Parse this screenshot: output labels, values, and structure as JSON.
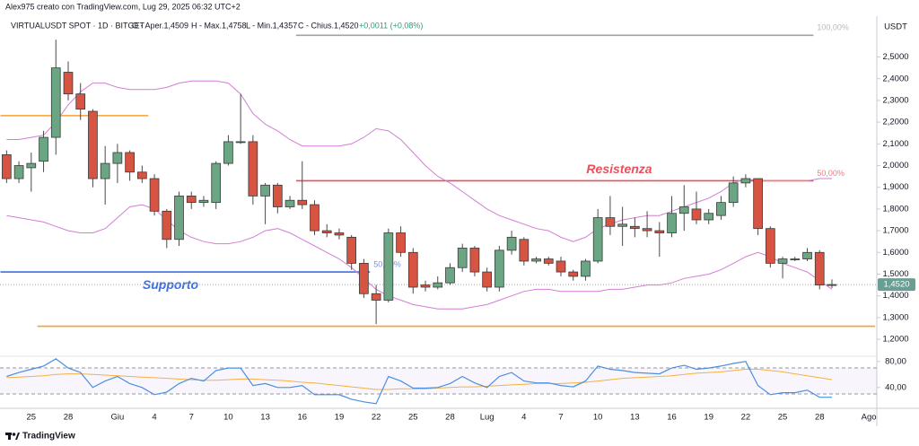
{
  "chart_data": {
    "type": "candlestick",
    "caption": "Alex975 creato con TradingView.com, Lug 29, 2025 06:32 UTC+2",
    "symbol": "VIRTUALUSDT SPOT · 1D · BITGET",
    "ohlc_legend": [
      "O - Aper.1,4509",
      "H - Max.1,4758",
      "L - Min.1,4357",
      "C - Chius.1,4520"
    ],
    "change": "+0,0011 (+0,08%)",
    "unit": "USDT",
    "brand": "TradingView",
    "categories": [
      null,
      null,
      "25",
      null,
      null,
      "28",
      null,
      null,
      null,
      "Giu",
      null,
      null,
      "4",
      null,
      null,
      "7",
      null,
      null,
      "10",
      null,
      null,
      "13",
      null,
      null,
      "16",
      null,
      null,
      "19",
      null,
      null,
      "22",
      null,
      null,
      "25",
      null,
      null,
      "28",
      null,
      null,
      "Lug",
      null,
      null,
      "4",
      null,
      null,
      "7",
      null,
      null,
      "10",
      null,
      null,
      "13",
      null,
      null,
      "16",
      null,
      null,
      "19",
      null,
      null,
      "22",
      null,
      null,
      "25",
      null,
      null,
      "28",
      null,
      null,
      null,
      "Ago"
    ],
    "ohlc": {
      "open": [
        2.05,
        1.94,
        1.99,
        2.02,
        2.13,
        2.43,
        2.33,
        2.25,
        1.94,
        2.01,
        2.06,
        1.97,
        1.94,
        1.79,
        1.66,
        1.86,
        1.83,
        1.83,
        2.01,
        2.11,
        2.11,
        1.86,
        1.91,
        1.81,
        1.84,
        1.82,
        1.7,
        1.69,
        1.67,
        1.55,
        1.41,
        1.38,
        1.69,
        1.6,
        1.45,
        1.44,
        1.46,
        1.53,
        1.62,
        1.51,
        1.44,
        1.61,
        1.66,
        1.56,
        1.57,
        1.56,
        1.51,
        1.49,
        1.56,
        1.76,
        1.72,
        1.72,
        1.71,
        1.7,
        1.69,
        1.78,
        1.8,
        1.75,
        1.77,
        1.83,
        1.92,
        1.94,
        1.71,
        1.55,
        1.57,
        1.57,
        1.6,
        1.4509,
        null,
        null,
        null
      ],
      "high": [
        2.07,
        2.02,
        2.06,
        2.16,
        2.58,
        2.48,
        2.38,
        2.26,
        2.09,
        2.1,
        2.07,
        2.0,
        1.96,
        1.8,
        1.88,
        1.88,
        1.86,
        2.02,
        2.14,
        2.33,
        2.14,
        1.92,
        1.92,
        1.86,
        2.02,
        1.84,
        1.73,
        1.71,
        1.68,
        1.57,
        1.45,
        1.71,
        1.72,
        1.62,
        1.47,
        1.49,
        1.55,
        1.64,
        1.63,
        1.53,
        1.63,
        1.7,
        1.67,
        1.58,
        1.58,
        1.58,
        1.52,
        1.57,
        1.8,
        1.86,
        1.81,
        1.76,
        1.79,
        1.74,
        1.86,
        1.91,
        1.88,
        1.8,
        1.86,
        1.95,
        1.96,
        1.94,
        1.72,
        1.58,
        1.58,
        1.62,
        1.61,
        1.4758,
        null,
        null,
        null
      ],
      "low": [
        1.92,
        1.92,
        1.88,
        1.97,
        2.05,
        2.3,
        2.21,
        1.9,
        1.82,
        1.92,
        1.93,
        1.92,
        1.77,
        1.62,
        1.63,
        1.8,
        1.81,
        1.8,
        2.0,
        2.1,
        1.82,
        1.73,
        1.78,
        1.8,
        1.8,
        1.68,
        1.67,
        1.66,
        1.52,
        1.39,
        1.27,
        1.37,
        1.58,
        1.41,
        1.42,
        1.43,
        1.45,
        1.51,
        1.49,
        1.42,
        1.42,
        1.59,
        1.54,
        1.55,
        1.54,
        1.49,
        1.47,
        1.47,
        1.55,
        1.68,
        1.63,
        1.67,
        1.67,
        1.58,
        1.67,
        1.7,
        1.73,
        1.73,
        1.75,
        1.81,
        1.9,
        1.68,
        1.53,
        1.48,
        1.56,
        1.56,
        1.43,
        1.4357,
        null,
        null,
        null
      ],
      "close": [
        1.94,
        2.0,
        2.01,
        2.13,
        2.45,
        2.33,
        2.26,
        1.94,
        2.01,
        2.06,
        1.97,
        1.94,
        1.79,
        1.66,
        1.86,
        1.83,
        1.84,
        2.01,
        2.11,
        2.11,
        1.86,
        1.91,
        1.81,
        1.84,
        1.82,
        1.7,
        1.69,
        1.68,
        1.55,
        1.41,
        1.38,
        1.69,
        1.6,
        1.44,
        1.44,
        1.46,
        1.53,
        1.62,
        1.51,
        1.44,
        1.61,
        1.67,
        1.56,
        1.57,
        1.55,
        1.51,
        1.49,
        1.56,
        1.76,
        1.72,
        1.73,
        1.71,
        1.7,
        1.69,
        1.78,
        1.81,
        1.75,
        1.78,
        1.83,
        1.92,
        1.94,
        1.71,
        1.55,
        1.57,
        1.57,
        1.6,
        1.45,
        1.452,
        null,
        null,
        null
      ]
    },
    "up_color": "#6ba583",
    "down_color": "#d75442",
    "bands": [
      {
        "color": "#d27fd2",
        "values": [
          2.12,
          2.12,
          2.13,
          2.14,
          2.2,
          2.28,
          2.34,
          2.38,
          2.38,
          2.36,
          2.35,
          2.35,
          2.35,
          2.36,
          2.38,
          2.39,
          2.39,
          2.39,
          2.38,
          2.33,
          2.24,
          2.19,
          2.16,
          2.12,
          2.09,
          2.09,
          2.09,
          2.09,
          2.1,
          2.13,
          2.17,
          2.16,
          2.12,
          2.06,
          2.0,
          1.95,
          1.92,
          1.88,
          1.84,
          1.8,
          1.77,
          1.75,
          1.73,
          1.71,
          1.7,
          1.67,
          1.65,
          1.67,
          1.71,
          1.73,
          1.75,
          1.76,
          1.77,
          1.77,
          1.79,
          1.81,
          1.83,
          1.85,
          1.88,
          1.92,
          1.94,
          1.93,
          1.93,
          1.93,
          1.93,
          1.93,
          1.94,
          1.94,
          null,
          null,
          null
        ]
      },
      {
        "color": "#d27fd2",
        "values": [
          1.77,
          1.76,
          1.75,
          1.74,
          1.72,
          1.7,
          1.69,
          1.69,
          1.71,
          1.76,
          1.81,
          1.82,
          1.8,
          1.75,
          1.7,
          1.67,
          1.65,
          1.64,
          1.64,
          1.65,
          1.67,
          1.7,
          1.71,
          1.69,
          1.66,
          1.63,
          1.6,
          1.57,
          1.53,
          1.48,
          1.43,
          1.4,
          1.38,
          1.36,
          1.35,
          1.34,
          1.34,
          1.34,
          1.35,
          1.36,
          1.38,
          1.4,
          1.42,
          1.43,
          1.43,
          1.42,
          1.42,
          1.42,
          1.42,
          1.43,
          1.43,
          1.44,
          1.45,
          1.45,
          1.46,
          1.48,
          1.49,
          1.5,
          1.52,
          1.55,
          1.58,
          1.6,
          1.58,
          1.55,
          1.53,
          1.51,
          1.47,
          1.43,
          null,
          null,
          null
        ]
      }
    ],
    "levels": [
      {
        "value": 2.23,
        "start": 0,
        "end": 11,
        "color": "#f5a033"
      },
      {
        "value": 1.51,
        "start": 0,
        "end": 29,
        "color": "#3d6fe0",
        "text": "Supporto",
        "label": "50,00%"
      },
      {
        "value": 1.26,
        "start": 3,
        "end": 70,
        "color": "#f5a033"
      },
      {
        "value": 1.93,
        "start": 24,
        "end": 65,
        "color": "#e8505b",
        "text": "Resistenza",
        "label": "50,00%"
      },
      {
        "value": 2.6,
        "start": 24,
        "end": 65,
        "color": "#9aa5a0",
        "label": "100,00%"
      }
    ],
    "last_price": {
      "value": 1.452,
      "label": "1,4520"
    },
    "ylim": [
      1.13,
      2.68
    ],
    "yticks": [
      {
        "value": 2.5,
        "label": "2,5000"
      },
      {
        "value": 2.4,
        "label": "2,4000"
      },
      {
        "value": 2.3,
        "label": "2,3000"
      },
      {
        "value": 2.2,
        "label": "2,2000"
      },
      {
        "value": 2.1,
        "label": "2,1000"
      },
      {
        "value": 2.0,
        "label": "2,0000"
      },
      {
        "value": 1.9,
        "label": "1,9000"
      },
      {
        "value": 1.8,
        "label": "1,8000"
      },
      {
        "value": 1.7,
        "label": "1,7000"
      },
      {
        "value": 1.6,
        "label": "1,6000"
      },
      {
        "value": 1.5,
        "label": "1,5000"
      },
      {
        "value": 1.4,
        "label": "1,4000"
      },
      {
        "value": 1.3,
        "label": "1,3000"
      },
      {
        "value": 1.2,
        "label": "1,2000"
      }
    ],
    "rsi": {
      "ylim": [
        8,
        88
      ],
      "yticks": [
        {
          "value": 80,
          "label": "80,00"
        },
        {
          "value": 40,
          "label": "40,00"
        }
      ],
      "levels": [
        70,
        30
      ],
      "color": "#4a8fe0",
      "ma_color": "#f5b041",
      "values": [
        57,
        63,
        68,
        73,
        84,
        70,
        63,
        40,
        50,
        57,
        46,
        40,
        29,
        33,
        46,
        54,
        50,
        66,
        70,
        70,
        43,
        46,
        40,
        40,
        43,
        29,
        29,
        29,
        22,
        18,
        15,
        57,
        50,
        39,
        39,
        40,
        46,
        57,
        47,
        40,
        57,
        63,
        50,
        47,
        47,
        43,
        41,
        50,
        73,
        68,
        66,
        63,
        62,
        61,
        70,
        74,
        68,
        70,
        73,
        77,
        80,
        43,
        29,
        32,
        32,
        36,
        25,
        25,
        null,
        null,
        null
      ],
      "ma": [
        55,
        56,
        57,
        58,
        60,
        61,
        61,
        60,
        59,
        58,
        57,
        56,
        55,
        54,
        53,
        52,
        51,
        51,
        52,
        53,
        53,
        52,
        51,
        50,
        48,
        47,
        45,
        43,
        41,
        39,
        37,
        37,
        38,
        38,
        38,
        39,
        40,
        41,
        41,
        42,
        43,
        44,
        45,
        46,
        46,
        46,
        47,
        48,
        50,
        52,
        54,
        55,
        56,
        57,
        58,
        60,
        62,
        63,
        64,
        66,
        68,
        68,
        66,
        64,
        61,
        58,
        55,
        52,
        null,
        null,
        null
      ]
    }
  }
}
